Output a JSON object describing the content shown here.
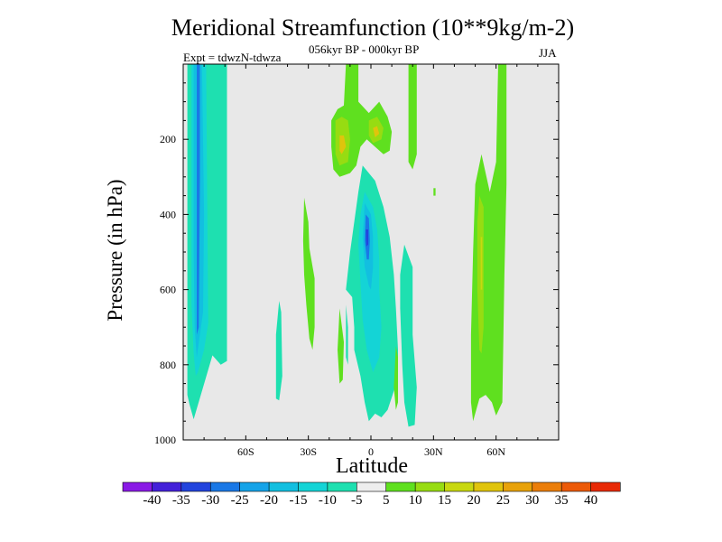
{
  "colors": {
    "background": "#e8e8e8",
    "cbar": [
      "#8a1ae6",
      "#4421d9",
      "#2244dd",
      "#1a78e6",
      "#15a3e8",
      "#12bfe0",
      "#14d4d6",
      "#1ee0b0",
      "#eeeeee",
      "#5fe01f",
      "#97dc12",
      "#c8d810",
      "#e0c40c",
      "#e8a20a",
      "#eb7e0a",
      "#ec5a08",
      "#e82a06"
    ]
  },
  "chart_data": {
    "type": "heatmap",
    "title": "Meridional Streamfunction (10**9kg/m-2)",
    "subtitle": "056kyr BP - 000kyr BP",
    "experiment": "Expt = tdwzN-tdwza",
    "season": "JJA",
    "xlabel": "Latitude",
    "ylabel": "Pressure (in hPa)",
    "xlim": [
      -90,
      90
    ],
    "ylim": [
      1000,
      0
    ],
    "xticks": [
      {
        "value": -60,
        "label": "60S"
      },
      {
        "value": -30,
        "label": "30S"
      },
      {
        "value": 0,
        "label": "0"
      },
      {
        "value": 30,
        "label": "30N"
      },
      {
        "value": 60,
        "label": "60N"
      }
    ],
    "yticks": [
      200,
      400,
      600,
      800,
      1000
    ],
    "colorbar_levels": [
      -40,
      -35,
      -30,
      -25,
      -20,
      -15,
      -10,
      -5,
      5,
      10,
      15,
      20,
      25,
      30,
      35,
      40
    ],
    "features": [
      {
        "name": "SH negative cell",
        "lat_range": [
          -88,
          -68
        ],
        "p_range": [
          0,
          945
        ],
        "min_level": -30
      },
      {
        "name": "Equatorial negative cell",
        "lat_range": [
          -12,
          22
        ],
        "p_range": [
          300,
          965
        ],
        "min_level": -30
      },
      {
        "name": "Upper-tropical positive cell",
        "lat_range": [
          -18,
          10
        ],
        "p_range": [
          0,
          350
        ],
        "max_level": 20
      },
      {
        "name": "NH positive cell",
        "lat_range": [
          47,
          66
        ],
        "p_range": [
          0,
          940
        ],
        "max_level": 15
      }
    ]
  }
}
